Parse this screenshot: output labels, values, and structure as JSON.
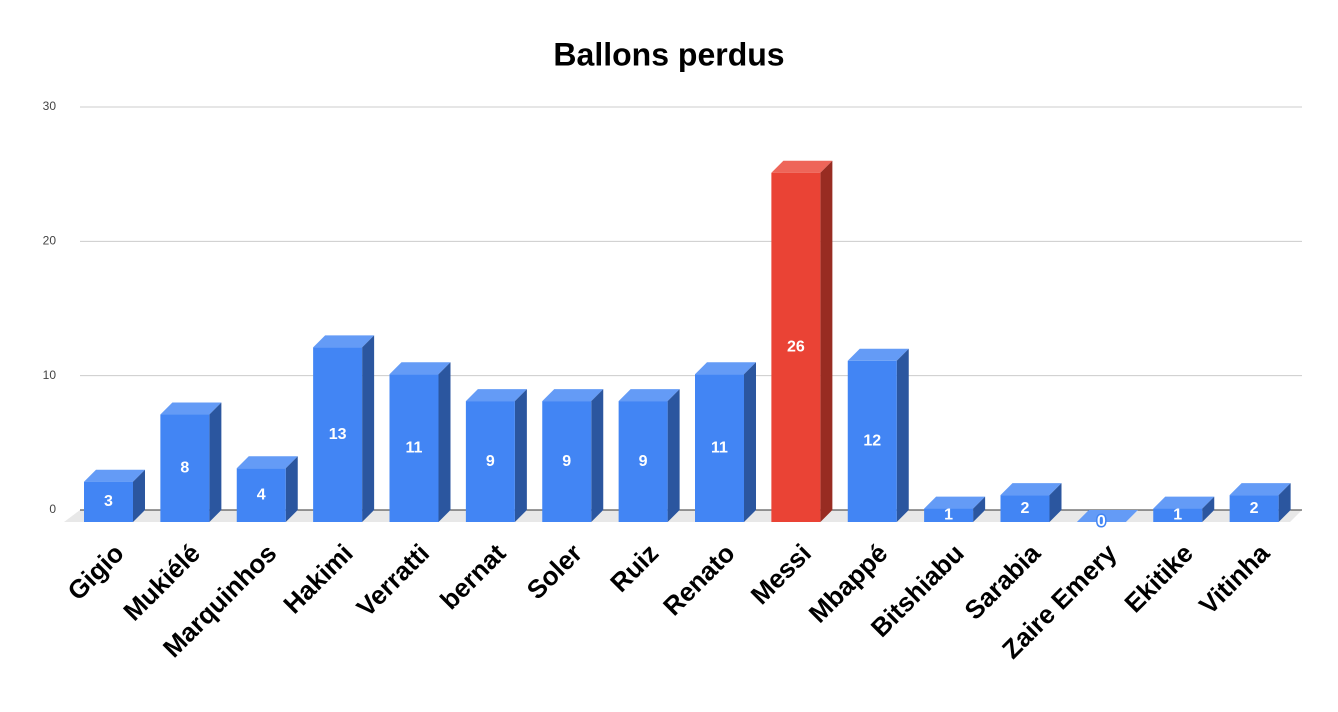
{
  "chart_data": {
    "type": "bar",
    "title": "Ballons perdus",
    "categories": [
      "Gigio",
      "Mukiélé",
      "Marquinhos",
      "Hakimi",
      "Verratti",
      "bernat",
      "Soler",
      "Ruiz",
      "Renato",
      "Messi",
      "Mbappé",
      "Bitshiabu",
      "Sarabia",
      "Zaire Emery",
      "Ekitike",
      "Vitinha"
    ],
    "values": [
      3,
      8,
      4,
      13,
      11,
      9,
      9,
      9,
      11,
      26,
      12,
      1,
      2,
      0,
      1,
      2
    ],
    "colors": [
      "#4285f4",
      "#4285f4",
      "#4285f4",
      "#4285f4",
      "#4285f4",
      "#4285f4",
      "#4285f4",
      "#4285f4",
      "#4285f4",
      "#ea4335",
      "#4285f4",
      "#4285f4",
      "#4285f4",
      "#4285f4",
      "#4285f4",
      "#4285f4"
    ],
    "ylim": [
      0,
      30
    ],
    "yticks": [
      0,
      10,
      20,
      30
    ],
    "grid": true
  }
}
